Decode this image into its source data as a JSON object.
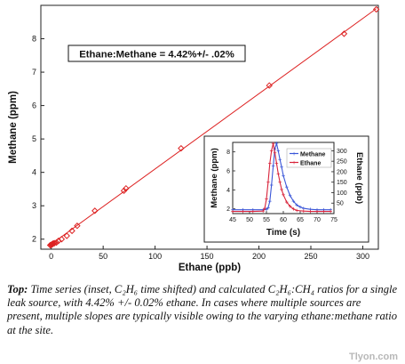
{
  "chart_data": [
    {
      "type": "scatter",
      "title": "",
      "xlabel": "Ethane (ppb)",
      "ylabel": "Methane (ppm)",
      "xlim": [
        -10,
        315
      ],
      "ylim": [
        1.7,
        9.0
      ],
      "xticks": [
        0,
        50,
        100,
        150,
        200,
        250,
        300
      ],
      "yticks": [
        2,
        3,
        4,
        5,
        6,
        7,
        8
      ],
      "grid": false,
      "annotation": "Ethane:Methane = 4.42%+/- .02%",
      "fit_line": {
        "x": [
          0,
          313
        ],
        "y": [
          1.85,
          8.9
        ]
      },
      "series": [
        {
          "x": [
            -1,
            0,
            0.5,
            1,
            1.5,
            2,
            3,
            5,
            7,
            10,
            15,
            20,
            25,
            42,
            70,
            72,
            125,
            210,
            282,
            313
          ],
          "y": [
            1.82,
            1.83,
            1.84,
            1.85,
            1.86,
            1.87,
            1.88,
            1.9,
            1.95,
            2.0,
            2.1,
            2.25,
            2.4,
            2.85,
            3.45,
            3.52,
            4.72,
            6.6,
            8.15,
            8.88
          ]
        }
      ],
      "color": "#dd2222"
    },
    {
      "type": "line",
      "title": "",
      "xlabel": "Time (s)",
      "ylabel": "Methane (ppm)",
      "y2label": "Ethane (ppb)",
      "xlim": [
        45,
        75
      ],
      "ylim": [
        1.5,
        9.0
      ],
      "y2lim": [
        0,
        340
      ],
      "xticks": [
        45,
        50,
        55,
        60,
        65,
        70,
        75
      ],
      "yticks": [
        2,
        4,
        6,
        8
      ],
      "y2ticks": [
        50,
        100,
        150,
        200,
        250,
        300
      ],
      "legend": "top-right",
      "series": [
        {
          "name": "Methane",
          "axis": "left",
          "color": "#3a56d8",
          "x": [
            45,
            48,
            51,
            54,
            55,
            55.5,
            56,
            56.5,
            57,
            57.5,
            58,
            58.5,
            59,
            59.5,
            60,
            61,
            62,
            63,
            64,
            65,
            66,
            68,
            70,
            72,
            74
          ],
          "y": [
            1.9,
            1.9,
            1.9,
            1.9,
            1.95,
            2.1,
            2.8,
            4.5,
            6.5,
            8.3,
            8.9,
            8.1,
            7.2,
            6.4,
            5.5,
            4.3,
            3.4,
            2.8,
            2.4,
            2.2,
            2.05,
            1.95,
            1.9,
            1.9,
            1.9
          ]
        },
        {
          "name": "Ethane",
          "axis": "right",
          "color": "#d8233a",
          "x": [
            45,
            48,
            51,
            54,
            54.5,
            55,
            55.5,
            56,
            56.5,
            57,
            57.5,
            58,
            58.5,
            59,
            59.5,
            60,
            61,
            62,
            63,
            64,
            66,
            68,
            70,
            72,
            74
          ],
          "y": [
            10,
            10,
            10,
            12,
            25,
            70,
            150,
            240,
            300,
            335,
            290,
            240,
            190,
            150,
            115,
            90,
            55,
            35,
            22,
            15,
            12,
            10,
            10,
            10,
            10
          ]
        }
      ]
    }
  ],
  "caption": {
    "lead": "Top:",
    "text": " Time series (inset, C₂H₆ time shifted) and calculated C₂H₆:CH₄ ratios for a single leak source, with 4.42% +/- 0.02% ethane.  In cases where multiple sources are present, multiple slopes are typically visible owing to the varying ethane:methane ratio at the site."
  },
  "watermark": "Tlyon.com"
}
